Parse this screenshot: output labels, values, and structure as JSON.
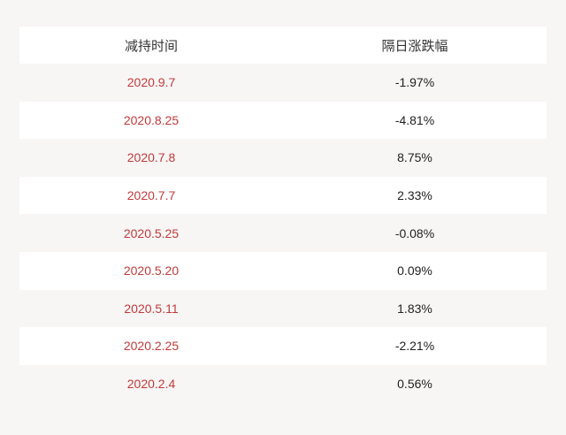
{
  "table": {
    "headers": [
      "减持时间",
      "隔日涨跌幅"
    ],
    "rows": [
      {
        "date": "2020.9.7",
        "change": "-1.97%"
      },
      {
        "date": "2020.8.25",
        "change": "-4.81%"
      },
      {
        "date": "2020.7.8",
        "change": "8.75%"
      },
      {
        "date": "2020.7.7",
        "change": "2.33%"
      },
      {
        "date": "2020.5.25",
        "change": "-0.08%"
      },
      {
        "date": "2020.5.20",
        "change": "0.09%"
      },
      {
        "date": "2020.5.11",
        "change": "1.83%"
      },
      {
        "date": "2020.2.25",
        "change": "-2.21%"
      },
      {
        "date": "2020.2.4",
        "change": "0.56%"
      }
    ]
  },
  "colors": {
    "background": "#f8f5f5",
    "row_alt": "#ffffff",
    "date_text": "#c23a3a",
    "value_text": "#222222"
  }
}
